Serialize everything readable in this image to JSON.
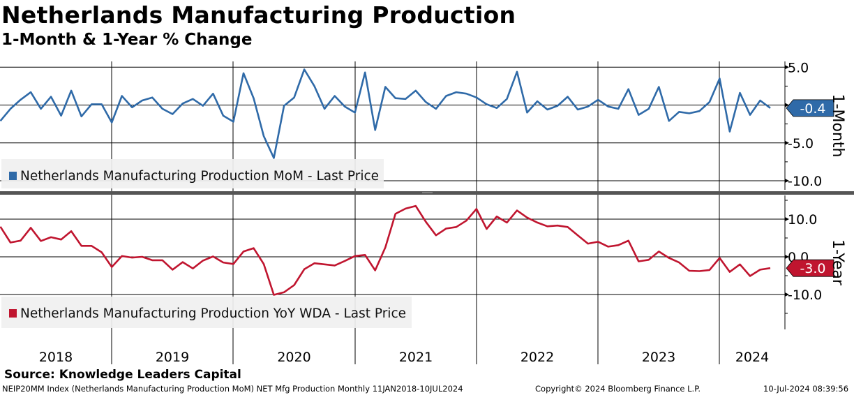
{
  "header": {
    "title": "Netherlands Manufacturing Production",
    "subtitle": "1-Month & 1-Year % Change"
  },
  "footer": {
    "source": "Source: Knowledge Leaders Capital",
    "description": "NEIP20MM Index (Netherlands Manufacturing Production MoM) NET Mfg Production  Monthly 11JAN2018-10JUL2024",
    "copyright": "Copyright© 2024 Bloomberg Finance L.P.",
    "timestamp": "10-Jul-2024 08:39:56"
  },
  "colors": {
    "mom": "#2f6aa8",
    "yoy": "#c0152f"
  },
  "chart_data": [
    {
      "type": "line",
      "panel_label": "1-Month",
      "legend": "Netherlands Manufacturing Production MoM - Last Price",
      "legend_placement": "bottom-left",
      "last_value_label": "-0.4",
      "ylim": [
        -11,
        6
      ],
      "yticks": [
        5,
        0,
        -5,
        -10
      ],
      "ytick_labels": [
        "5.0",
        "",
        "-5.0",
        "-10.0"
      ],
      "start_month": "2018-02",
      "values": [
        -2.1,
        -0.5,
        0.7,
        1.7,
        -0.5,
        1.1,
        -1.4,
        1.9,
        -1.5,
        0.1,
        0.1,
        -2.3,
        1.2,
        -0.3,
        0.6,
        1.0,
        -0.5,
        -1.2,
        0.2,
        0.8,
        -0.1,
        1.5,
        -1.4,
        -2.2,
        4.2,
        0.9,
        -4.1,
        -7.0,
        -0.1,
        1.0,
        4.7,
        2.5,
        -0.5,
        1.2,
        -0.2,
        -1.0,
        4.3,
        -3.3,
        2.4,
        0.9,
        0.8,
        1.9,
        0.4,
        -0.5,
        1.2,
        1.7,
        1.5,
        1.0,
        0.1,
        -0.4,
        0.8,
        4.4,
        -1.0,
        0.5,
        -0.6,
        -0.1,
        1.1,
        -0.6,
        -0.2,
        0.7,
        -0.2,
        -0.5,
        2.1,
        -1.3,
        -0.5,
        2.4,
        -2.1,
        -0.9,
        -1.1,
        -0.8,
        0.4,
        3.5,
        -3.5,
        1.6,
        -1.3,
        0.6,
        -0.4
      ]
    },
    {
      "type": "line",
      "panel_label": "1-Year",
      "legend": "Netherlands Manufacturing Production YoY WDA - Last Price",
      "legend_placement": "bottom-left",
      "last_value_label": "-3.0",
      "ylim": [
        -19,
        16
      ],
      "yticks": [
        10,
        0,
        -10
      ],
      "ytick_labels": [
        "10.0",
        "0.0",
        "-10.0"
      ],
      "start_month": "2018-02",
      "values": [
        8.0,
        3.8,
        4.3,
        7.7,
        4.2,
        5.2,
        4.6,
        6.8,
        2.9,
        2.9,
        1.2,
        -2.7,
        0.2,
        -0.2,
        0.0,
        -0.9,
        -0.9,
        -3.4,
        -1.4,
        -3.1,
        -1.0,
        0.1,
        -1.5,
        -1.9,
        1.4,
        2.3,
        -1.9,
        -10.1,
        -9.4,
        -7.5,
        -3.3,
        -1.7,
        -2.0,
        -2.3,
        -1.1,
        0.2,
        0.5,
        -3.6,
        2.5,
        11.4,
        12.8,
        13.5,
        9.3,
        5.7,
        7.5,
        7.9,
        9.6,
        12.7,
        7.4,
        10.7,
        9.1,
        12.3,
        10.4,
        9.1,
        8.1,
        8.3,
        7.9,
        5.7,
        3.5,
        4.0,
        2.7,
        3.1,
        4.3,
        -1.2,
        -0.8,
        1.4,
        -0.3,
        -1.5,
        -3.7,
        -3.8,
        -3.5,
        -0.3,
        -4.0,
        -2.0,
        -5.1,
        -3.4,
        -3.0
      ]
    }
  ],
  "x_axis": {
    "years": [
      "2018",
      "2019",
      "2020",
      "2021",
      "2022",
      "2023",
      "2024"
    ]
  }
}
